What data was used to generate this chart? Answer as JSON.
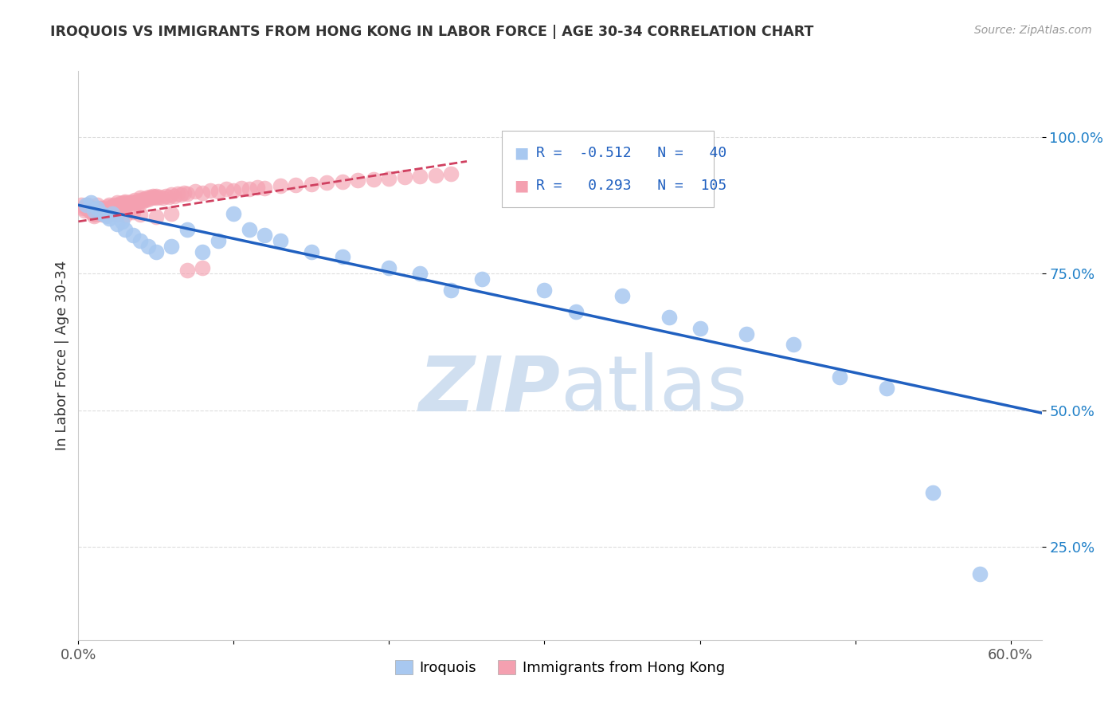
{
  "title": "IROQUOIS VS IMMIGRANTS FROM HONG KONG IN LABOR FORCE | AGE 30-34 CORRELATION CHART",
  "source": "Source: ZipAtlas.com",
  "ylabel": "In Labor Force | Age 30-34",
  "xlim": [
    0.0,
    0.62
  ],
  "ylim": [
    0.08,
    1.12
  ],
  "yticks": [
    0.25,
    0.5,
    0.75,
    1.0
  ],
  "ytick_labels": [
    "25.0%",
    "50.0%",
    "75.0%",
    "100.0%"
  ],
  "legend_blue_r": "-0.512",
  "legend_blue_n": "40",
  "legend_pink_r": "0.293",
  "legend_pink_n": "105",
  "blue_color": "#a8c8f0",
  "pink_color": "#f4a0b0",
  "blue_line_color": "#2060c0",
  "pink_line_color": "#d04060",
  "background_color": "#ffffff",
  "grid_color": "#dddddd",
  "watermark_color": "#d0dff0",
  "blue_line_y0": 0.875,
  "blue_line_y1": 0.495,
  "pink_line_x0": 0.0,
  "pink_line_x1": 0.25,
  "pink_line_y0": 0.845,
  "pink_line_y1": 0.955,
  "iroquois_x": [
    0.005,
    0.008,
    0.01,
    0.012,
    0.015,
    0.018,
    0.02,
    0.022,
    0.025,
    0.028,
    0.03,
    0.035,
    0.04,
    0.045,
    0.05,
    0.06,
    0.07,
    0.08,
    0.09,
    0.1,
    0.11,
    0.12,
    0.13,
    0.15,
    0.17,
    0.2,
    0.22,
    0.24,
    0.26,
    0.3,
    0.32,
    0.35,
    0.38,
    0.4,
    0.43,
    0.46,
    0.49,
    0.52,
    0.55,
    0.58
  ],
  "iroquois_y": [
    0.875,
    0.88,
    0.865,
    0.87,
    0.86,
    0.855,
    0.85,
    0.86,
    0.84,
    0.845,
    0.83,
    0.82,
    0.81,
    0.8,
    0.79,
    0.8,
    0.83,
    0.79,
    0.81,
    0.86,
    0.83,
    0.82,
    0.81,
    0.79,
    0.78,
    0.76,
    0.75,
    0.72,
    0.74,
    0.72,
    0.68,
    0.71,
    0.67,
    0.65,
    0.64,
    0.62,
    0.56,
    0.54,
    0.35,
    0.2
  ],
  "hk_x": [
    0.002,
    0.003,
    0.004,
    0.005,
    0.006,
    0.007,
    0.008,
    0.009,
    0.01,
    0.01,
    0.01,
    0.01,
    0.012,
    0.012,
    0.013,
    0.014,
    0.015,
    0.015,
    0.015,
    0.016,
    0.017,
    0.018,
    0.019,
    0.02,
    0.02,
    0.021,
    0.022,
    0.023,
    0.024,
    0.025,
    0.025,
    0.026,
    0.027,
    0.028,
    0.029,
    0.03,
    0.03,
    0.031,
    0.032,
    0.033,
    0.034,
    0.035,
    0.036,
    0.037,
    0.038,
    0.039,
    0.04,
    0.04,
    0.041,
    0.042,
    0.043,
    0.044,
    0.045,
    0.046,
    0.047,
    0.048,
    0.049,
    0.05,
    0.05,
    0.052,
    0.054,
    0.056,
    0.058,
    0.06,
    0.062,
    0.064,
    0.066,
    0.068,
    0.07,
    0.075,
    0.08,
    0.085,
    0.09,
    0.095,
    0.1,
    0.105,
    0.11,
    0.115,
    0.12,
    0.13,
    0.14,
    0.15,
    0.16,
    0.17,
    0.18,
    0.19,
    0.2,
    0.21,
    0.22,
    0.23,
    0.24,
    0.008,
    0.01,
    0.012,
    0.015,
    0.018,
    0.02,
    0.025,
    0.03,
    0.035,
    0.04,
    0.05,
    0.06,
    0.07,
    0.08
  ],
  "hk_y": [
    0.875,
    0.87,
    0.865,
    0.87,
    0.875,
    0.865,
    0.87,
    0.868,
    0.86,
    0.855,
    0.87,
    0.865,
    0.875,
    0.865,
    0.86,
    0.87,
    0.865,
    0.858,
    0.87,
    0.862,
    0.868,
    0.864,
    0.872,
    0.87,
    0.875,
    0.868,
    0.872,
    0.875,
    0.868,
    0.88,
    0.875,
    0.872,
    0.878,
    0.876,
    0.88,
    0.878,
    0.882,
    0.876,
    0.88,
    0.878,
    0.882,
    0.88,
    0.884,
    0.878,
    0.882,
    0.88,
    0.884,
    0.888,
    0.882,
    0.886,
    0.884,
    0.888,
    0.886,
    0.89,
    0.888,
    0.892,
    0.89,
    0.888,
    0.892,
    0.89,
    0.888,
    0.892,
    0.89,
    0.895,
    0.892,
    0.896,
    0.894,
    0.898,
    0.896,
    0.9,
    0.898,
    0.902,
    0.9,
    0.904,
    0.902,
    0.906,
    0.904,
    0.908,
    0.906,
    0.91,
    0.912,
    0.914,
    0.916,
    0.918,
    0.92,
    0.922,
    0.924,
    0.926,
    0.928,
    0.93,
    0.932,
    0.862,
    0.858,
    0.864,
    0.86,
    0.856,
    0.862,
    0.858,
    0.856,
    0.862,
    0.858,
    0.854,
    0.86,
    0.756,
    0.76
  ]
}
